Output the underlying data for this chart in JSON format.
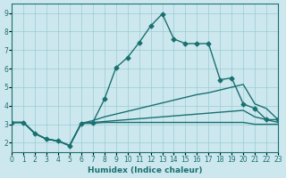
{
  "xlabel": "Humidex (Indice chaleur)",
  "bg_color": "#cce8ee",
  "grid_color": "#99ccd4",
  "line_color": "#1a7070",
  "xlim": [
    0,
    23
  ],
  "ylim": [
    1.5,
    9.5
  ],
  "xticks": [
    0,
    1,
    2,
    3,
    4,
    5,
    6,
    7,
    8,
    9,
    10,
    11,
    12,
    13,
    14,
    15,
    16,
    17,
    18,
    19,
    20,
    21,
    22,
    23
  ],
  "yticks": [
    2,
    3,
    4,
    5,
    6,
    7,
    8,
    9
  ],
  "line1_x": [
    0,
    1,
    2,
    3,
    4,
    5,
    6,
    7,
    8,
    9,
    10,
    11,
    12,
    13,
    14,
    15,
    16,
    17,
    18,
    19,
    20,
    21,
    22,
    23
  ],
  "line1_y": [
    3.1,
    3.1,
    2.5,
    2.2,
    2.1,
    1.85,
    3.05,
    3.1,
    4.35,
    6.05,
    6.6,
    7.4,
    8.3,
    8.95,
    7.6,
    7.35,
    7.35,
    7.35,
    5.4,
    5.5,
    4.1,
    3.85,
    3.25,
    3.25
  ],
  "line2_x": [
    0,
    1,
    2,
    3,
    4,
    5,
    6,
    7,
    8,
    9,
    10,
    11,
    12,
    13,
    14,
    15,
    16,
    17,
    18,
    19,
    20,
    21,
    22,
    23
  ],
  "line2_y": [
    3.1,
    3.1,
    2.5,
    2.2,
    2.1,
    1.85,
    3.05,
    3.2,
    3.4,
    3.55,
    3.7,
    3.85,
    4.0,
    4.15,
    4.3,
    4.45,
    4.6,
    4.7,
    4.85,
    5.0,
    5.15,
    4.1,
    3.85,
    3.25
  ],
  "line3_x": [
    0,
    1,
    2,
    3,
    4,
    5,
    6,
    7,
    8,
    9,
    10,
    11,
    12,
    13,
    14,
    15,
    16,
    17,
    18,
    19,
    20,
    21,
    22,
    23
  ],
  "line3_y": [
    3.1,
    3.1,
    2.5,
    2.2,
    2.1,
    1.85,
    3.05,
    3.1,
    3.15,
    3.2,
    3.25,
    3.3,
    3.35,
    3.4,
    3.45,
    3.5,
    3.55,
    3.6,
    3.65,
    3.7,
    3.75,
    3.4,
    3.25,
    3.1
  ],
  "line4_x": [
    0,
    1,
    2,
    3,
    4,
    5,
    6,
    7,
    8,
    9,
    10,
    11,
    12,
    13,
    14,
    15,
    16,
    17,
    18,
    19,
    20,
    21,
    22,
    23
  ],
  "line4_y": [
    3.1,
    3.1,
    2.5,
    2.2,
    2.1,
    1.85,
    3.05,
    3.05,
    3.1,
    3.1,
    3.1,
    3.1,
    3.1,
    3.1,
    3.1,
    3.1,
    3.1,
    3.1,
    3.1,
    3.1,
    3.1,
    3.0,
    3.0,
    3.0
  ]
}
